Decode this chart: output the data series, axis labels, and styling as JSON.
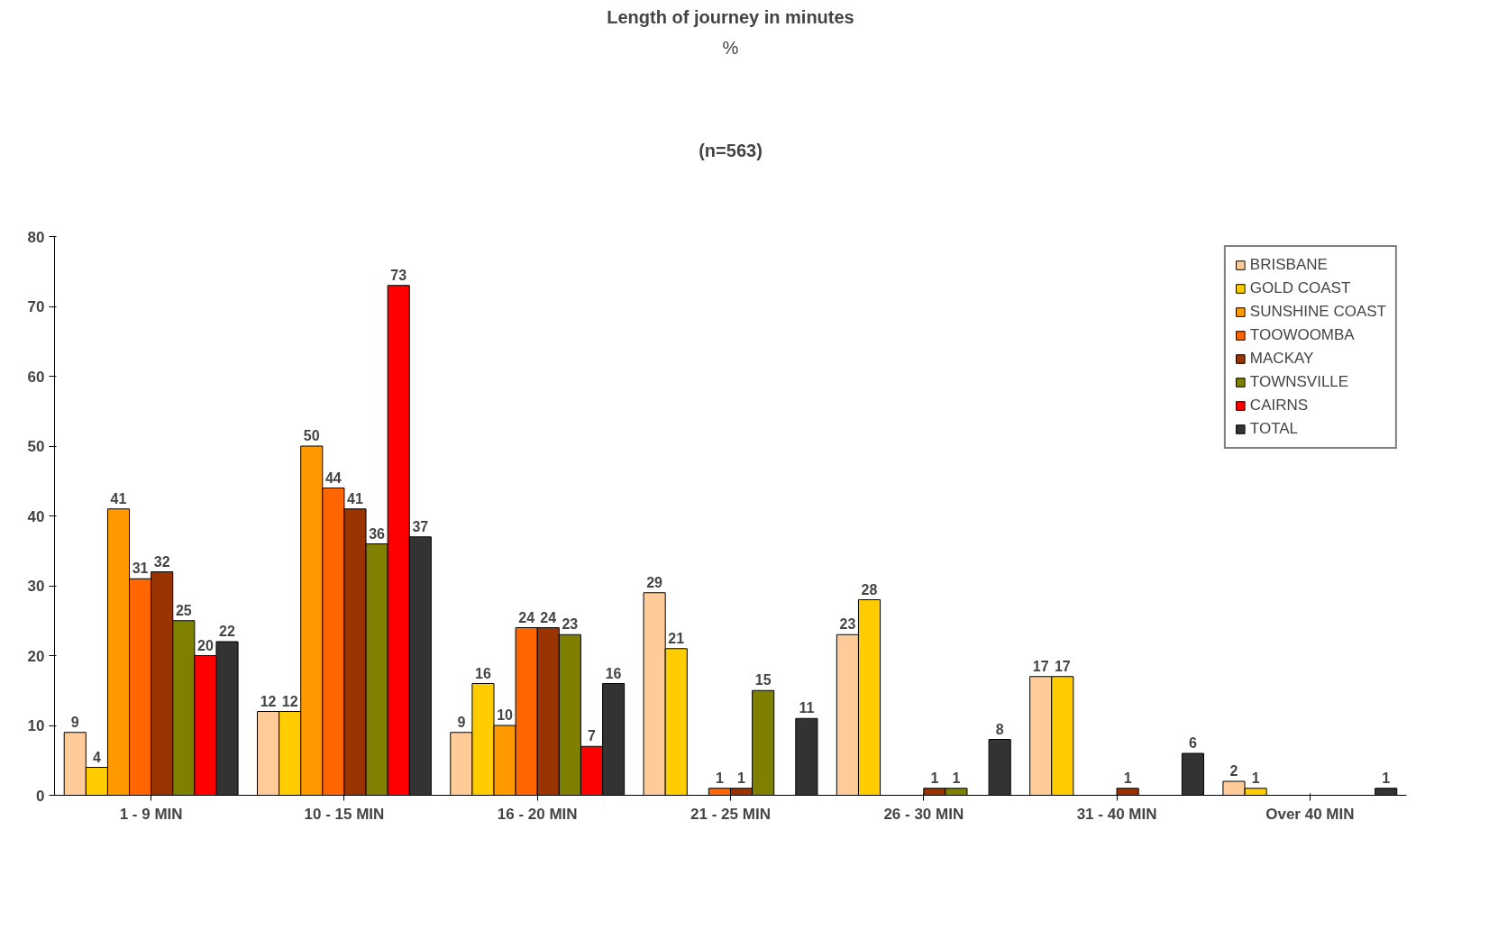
{
  "chart_data": {
    "type": "bar",
    "title": "Length of journey in minutes",
    "subtitle": "%",
    "annotations": [
      "(n=563)"
    ],
    "categories": [
      "1 - 9 MIN",
      "10 - 15 MIN",
      "16 - 20 MIN",
      "21 - 25 MIN",
      "26 - 30 MIN",
      "31 - 40 MIN",
      "Over 40 MIN"
    ],
    "series": [
      {
        "name": "BRISBANE",
        "color": "#ffcc99",
        "values": [
          9,
          12,
          9,
          29,
          23,
          17,
          2
        ]
      },
      {
        "name": "GOLD COAST",
        "color": "#ffcc00",
        "values": [
          4,
          12,
          16,
          21,
          28,
          17,
          1
        ]
      },
      {
        "name": "SUNSHINE COAST",
        "color": "#ff9900",
        "values": [
          41,
          50,
          10,
          null,
          null,
          null,
          null
        ]
      },
      {
        "name": "TOOWOOMBA",
        "color": "#ff6600",
        "values": [
          31,
          44,
          24,
          1,
          null,
          null,
          null
        ]
      },
      {
        "name": "MACKAY",
        "color": "#993300",
        "values": [
          32,
          41,
          24,
          1,
          1,
          1,
          null
        ]
      },
      {
        "name": "TOWNSVILLE",
        "color": "#808000",
        "values": [
          25,
          36,
          23,
          15,
          1,
          null,
          null
        ]
      },
      {
        "name": "CAIRNS",
        "color": "#ff0000",
        "values": [
          20,
          73,
          7,
          null,
          null,
          null,
          null
        ]
      },
      {
        "name": "TOTAL",
        "color": "#333333",
        "values": [
          22,
          37,
          16,
          11,
          8,
          6,
          1
        ]
      }
    ],
    "ylim": [
      0,
      80
    ],
    "yticks": [
      0,
      10,
      20,
      30,
      40,
      50,
      60,
      70,
      80
    ],
    "grid": false,
    "legend": "top right",
    "data_labels": true
  }
}
